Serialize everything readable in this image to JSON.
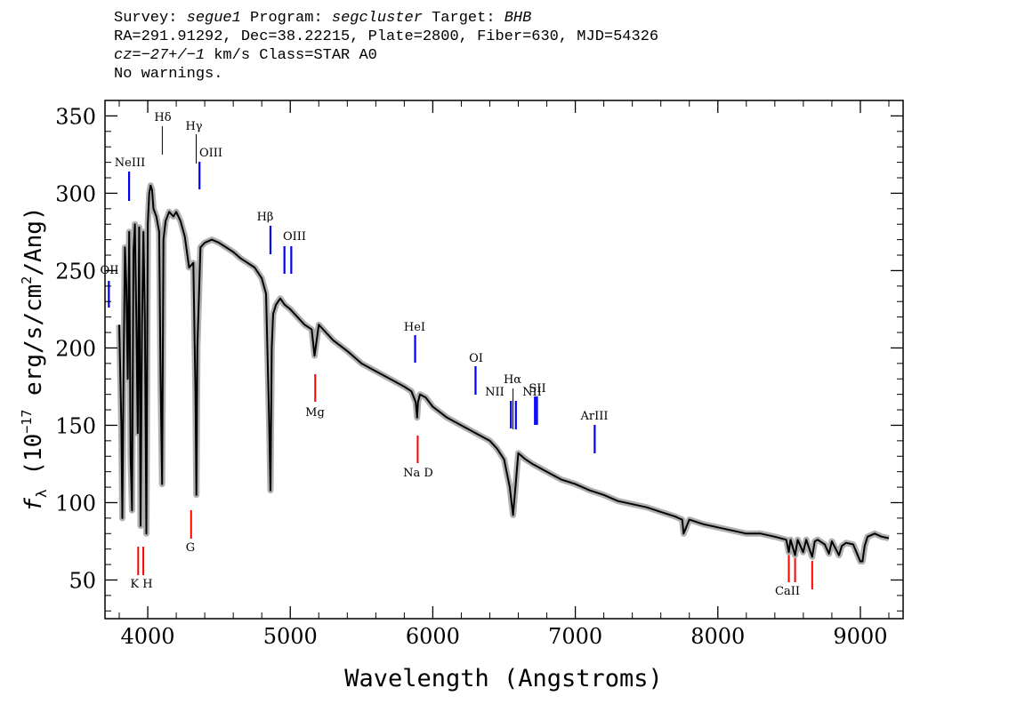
{
  "header": {
    "survey_label": "Survey:",
    "survey_value": "segue1",
    "program_label": "Program:",
    "program_value": "segcluster",
    "target_label": "Target:",
    "target_value": "BHB",
    "line2": "RA=291.91292, Dec=38.22215, Plate=2800, Fiber=630, MJD=54326",
    "cz_label": "cz",
    "cz_value": "=−27+/−1",
    "cz_rest": " km/s Class=STAR A0",
    "line4": "No warnings."
  },
  "chart_data": {
    "type": "line",
    "xlabel": "Wavelength (Angstroms)",
    "ylabel": "f_λ (10^-17 erg/s/cm^2/Ang)",
    "ylabel_prefix": "f",
    "ylabel_sub": "λ",
    "ylabel_mid": " (10",
    "ylabel_exp1": "−17",
    "ylabel_mid2": " erg/s/cm",
    "ylabel_exp2": "2",
    "ylabel_end": "/Ang)",
    "xlim": [
      3700,
      9300
    ],
    "ylim": [
      25,
      360
    ],
    "xticks": [
      4000,
      5000,
      6000,
      7000,
      8000,
      9000
    ],
    "yticks": [
      50,
      100,
      150,
      200,
      250,
      300,
      350
    ],
    "grid": false,
    "colors": {
      "spectrum": "#000000",
      "error_band": "#b0b0b0",
      "emission": "#0000ff",
      "absorption": "#ff0000",
      "axes": "#000000"
    },
    "spectrum": {
      "x": [
        3800,
        3815,
        3822,
        3830,
        3840,
        3850,
        3860,
        3870,
        3880,
        3890,
        3900,
        3910,
        3920,
        3930,
        3940,
        3950,
        3960,
        3970,
        3980,
        3990,
        4000,
        4010,
        4020,
        4030,
        4040,
        4060,
        4080,
        4090,
        4101,
        4110,
        4125,
        4150,
        4180,
        4200,
        4230,
        4260,
        4290,
        4320,
        4335,
        4341,
        4348,
        4370,
        4400,
        4450,
        4500,
        4550,
        4600,
        4650,
        4700,
        4750,
        4800,
        4830,
        4850,
        4861,
        4870,
        4880,
        4900,
        4930,
        4960,
        5000,
        5050,
        5100,
        5150,
        5170,
        5185,
        5200,
        5250,
        5300,
        5400,
        5500,
        5600,
        5700,
        5800,
        5850,
        5880,
        5890,
        5896,
        5910,
        5950,
        6000,
        6100,
        6200,
        6300,
        6400,
        6450,
        6500,
        6540,
        6563,
        6580,
        6600,
        6650,
        6700,
        6800,
        6900,
        7000,
        7100,
        7200,
        7300,
        7400,
        7500,
        7600,
        7700,
        7750,
        7760,
        7800,
        7900,
        8000,
        8100,
        8200,
        8300,
        8400,
        8480,
        8498,
        8510,
        8542,
        8560,
        8598,
        8620,
        8662,
        8680,
        8700,
        8750,
        8780,
        8800,
        8850,
        8870,
        8900,
        8950,
        9000,
        9015,
        9030,
        9050,
        9100,
        9150,
        9200
      ],
      "y": [
        215,
        150,
        90,
        180,
        265,
        240,
        180,
        275,
        130,
        95,
        262,
        280,
        220,
        145,
        278,
        85,
        215,
        275,
        220,
        80,
        280,
        300,
        305,
        302,
        290,
        285,
        275,
        180,
        112,
        270,
        282,
        288,
        285,
        288,
        282,
        272,
        252,
        255,
        170,
        105,
        200,
        265,
        268,
        270,
        268,
        265,
        262,
        258,
        255,
        252,
        245,
        235,
        160,
        108,
        200,
        222,
        228,
        232,
        228,
        225,
        220,
        215,
        212,
        195,
        205,
        215,
        210,
        205,
        198,
        190,
        185,
        180,
        175,
        172,
        165,
        155,
        165,
        170,
        168,
        162,
        155,
        150,
        145,
        140,
        135,
        128,
        110,
        92,
        110,
        132,
        128,
        125,
        120,
        115,
        112,
        108,
        105,
        101,
        99,
        97,
        94,
        91,
        89,
        80,
        89,
        86,
        84,
        82,
        80,
        80,
        78,
        76,
        68,
        76,
        66,
        76,
        68,
        76,
        65,
        75,
        76,
        73,
        67,
        75,
        66,
        72,
        74,
        73,
        62,
        62,
        72,
        78,
        80,
        78,
        77
      ]
    },
    "emission_lines": [
      {
        "label": "OII",
        "x": 3727
      },
      {
        "label": "NeIII",
        "x": 3869
      },
      {
        "label": "Hδ",
        "x": 4102
      },
      {
        "label": "Hγ",
        "x": 4340
      },
      {
        "label": "OIII",
        "x": 4363
      },
      {
        "label": "Hβ",
        "x": 4861
      },
      {
        "label": "OIII",
        "x": 4959
      },
      {
        "label": "",
        "x": 5007
      },
      {
        "label": "HeI",
        "x": 5876
      },
      {
        "label": "OI",
        "x": 6300
      },
      {
        "label": "NII",
        "x": 6548
      },
      {
        "label": "Hα",
        "x": 6563
      },
      {
        "label": "NII",
        "x": 6583
      },
      {
        "label": "SII",
        "x": 6717
      },
      {
        "label": "",
        "x": 6731
      },
      {
        "label": "ArIII",
        "x": 7136
      }
    ],
    "absorption_lines": [
      {
        "label": "K H",
        "x": 3933
      },
      {
        "label": "",
        "x": 3969
      },
      {
        "label": "G",
        "x": 4304
      },
      {
        "label": "Mg",
        "x": 5175
      },
      {
        "label": "Na D",
        "x": 5894
      },
      {
        "label": "CaII",
        "x": 8498
      },
      {
        "label": "",
        "x": 8542
      },
      {
        "label": "",
        "x": 8662
      }
    ]
  }
}
